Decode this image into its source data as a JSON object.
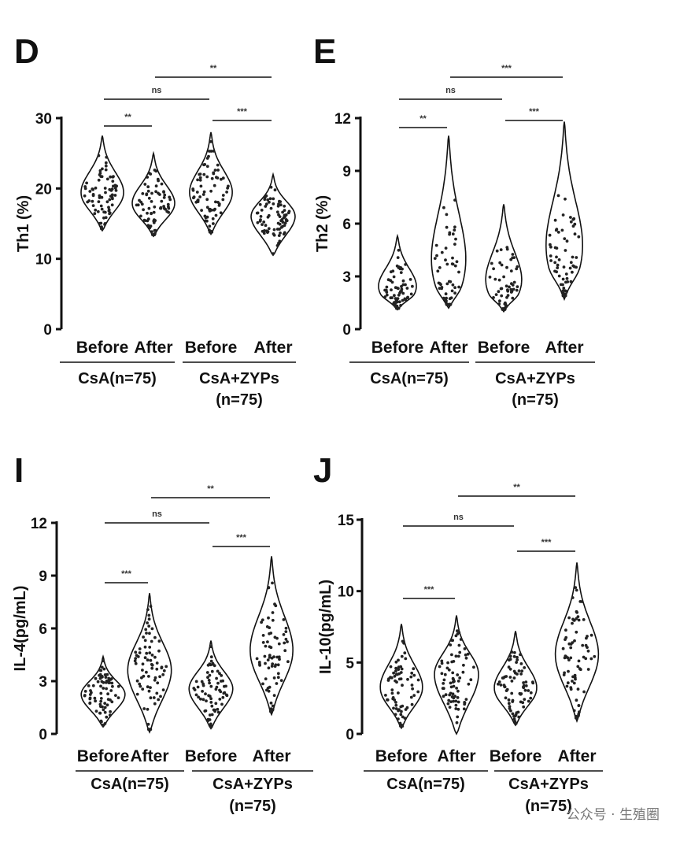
{
  "categories": [
    "Before",
    "After",
    "Before",
    "After"
  ],
  "groups": [
    {
      "label": "CsA(n=75)",
      "sublabel": ""
    },
    {
      "label": "CsA+ZYPs",
      "sublabel": "(n=75)"
    }
  ],
  "watermark": "公众号 · 生殖圈",
  "chart_data": [
    {
      "panel": "D",
      "type": "violin",
      "ylabel": "Th1 (%)",
      "ylim": [
        0,
        30
      ],
      "yticks": [
        0,
        10,
        20,
        30
      ],
      "categories": [
        "Before",
        "After",
        "Before",
        "After"
      ],
      "series": [
        {
          "category": "Before",
          "group": "CsA(n=75)",
          "min": 14,
          "max": 27.5,
          "median": 19
        },
        {
          "category": "After",
          "group": "CsA(n=75)",
          "min": 13.2,
          "max": 25,
          "median": 17.5
        },
        {
          "category": "Before",
          "group": "CsA+ZYPs",
          "min": 13.5,
          "max": 28,
          "median": 19
        },
        {
          "category": "After",
          "group": "CsA+ZYPs",
          "min": 10.5,
          "max": 22,
          "median": 16
        }
      ],
      "comparisons": [
        {
          "from": 0,
          "to": 1,
          "label": "**"
        },
        {
          "from": 0,
          "to": 2,
          "label": "ns"
        },
        {
          "from": 1,
          "to": 3,
          "label": "**"
        },
        {
          "from": 2,
          "to": 3,
          "label": "***"
        }
      ]
    },
    {
      "panel": "E",
      "type": "violin",
      "ylabel": "Th2 (%)",
      "ylim": [
        0,
        12
      ],
      "yticks": [
        0,
        3,
        6,
        9,
        12
      ],
      "categories": [
        "Before",
        "After",
        "Before",
        "After"
      ],
      "series": [
        {
          "category": "Before",
          "group": "CsA(n=75)",
          "min": 1.1,
          "max": 5.3,
          "median": 2
        },
        {
          "category": "After",
          "group": "CsA(n=75)",
          "min": 1.2,
          "max": 11,
          "median": 2.4
        },
        {
          "category": "Before",
          "group": "CsA+ZYPs",
          "min": 1.0,
          "max": 7.1,
          "median": 2
        },
        {
          "category": "After",
          "group": "CsA+ZYPs",
          "min": 1.7,
          "max": 11.8,
          "median": 3.5
        }
      ],
      "comparisons": [
        {
          "from": 0,
          "to": 1,
          "label": "**"
        },
        {
          "from": 0,
          "to": 2,
          "label": "ns"
        },
        {
          "from": 1,
          "to": 3,
          "label": "***"
        },
        {
          "from": 2,
          "to": 3,
          "label": "***"
        }
      ]
    },
    {
      "panel": "I",
      "type": "violin",
      "ylabel": "IL-4(pg/mL)",
      "ylim": [
        0,
        12
      ],
      "yticks": [
        0,
        3,
        6,
        9,
        12
      ],
      "categories": [
        "Before",
        "After",
        "Before",
        "After"
      ],
      "series": [
        {
          "category": "Before",
          "group": "CsA(n=75)",
          "min": 0.4,
          "max": 4.4,
          "median": 2.2
        },
        {
          "category": "After",
          "group": "CsA(n=75)",
          "min": 0.1,
          "max": 8,
          "median": 3.5
        },
        {
          "category": "Before",
          "group": "CsA+ZYPs",
          "min": 0.3,
          "max": 5.3,
          "median": 2.5
        },
        {
          "category": "After",
          "group": "CsA+ZYPs",
          "min": 1.1,
          "max": 10.1,
          "median": 4.5
        }
      ],
      "comparisons": [
        {
          "from": 0,
          "to": 1,
          "label": "***"
        },
        {
          "from": 0,
          "to": 2,
          "label": "ns"
        },
        {
          "from": 1,
          "to": 3,
          "label": "**"
        },
        {
          "from": 2,
          "to": 3,
          "label": "***"
        }
      ]
    },
    {
      "panel": "J",
      "type": "violin",
      "ylabel": "IL-10(pg/mL)",
      "ylim": [
        0,
        15
      ],
      "yticks": [
        0,
        5,
        10,
        15
      ],
      "categories": [
        "Before",
        "After",
        "Before",
        "After"
      ],
      "series": [
        {
          "category": "Before",
          "group": "CsA(n=75)",
          "min": 0.4,
          "max": 7.7,
          "median": 3
        },
        {
          "category": "After",
          "group": "CsA(n=75)",
          "min": 0,
          "max": 8.3,
          "median": 4.2
        },
        {
          "category": "Before",
          "group": "CsA+ZYPs",
          "min": 0.6,
          "max": 7.2,
          "median": 3
        },
        {
          "category": "After",
          "group": "CsA+ZYPs",
          "min": 0.9,
          "max": 12,
          "median": 5.3
        }
      ],
      "comparisons": [
        {
          "from": 0,
          "to": 1,
          "label": "***"
        },
        {
          "from": 0,
          "to": 2,
          "label": "ns"
        },
        {
          "from": 1,
          "to": 3,
          "label": "**"
        },
        {
          "from": 2,
          "to": 3,
          "label": "***"
        }
      ]
    }
  ]
}
